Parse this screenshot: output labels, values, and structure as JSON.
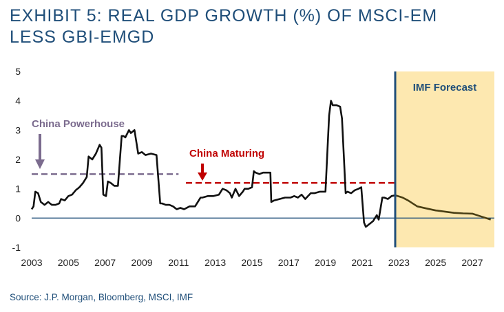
{
  "title": {
    "line1": "EXHIBIT 5: REAL GDP GROWTH (%) OF MSCI-EM",
    "line2": "LESS GBI-EMGD"
  },
  "source": "Source: J.P. Morgan, Bloomberg, MSCI, IMF",
  "colors": {
    "actual": "#111111",
    "forecast": "#4a3f14",
    "china_powerhouse": "#7b6b8e",
    "china_maturing": "#c00000",
    "forecast_shade": "#fde8b0",
    "divider": "#1f4e79"
  },
  "chart_data": {
    "type": "line",
    "title": "EXHIBIT 5: REAL GDP GROWTH (%) OF MSCI-EM LESS GBI-EMGD",
    "xlabel": "",
    "ylabel": "",
    "xlim": [
      2003,
      2028.2
    ],
    "ylim": [
      -1,
      5
    ],
    "x_ticks": [
      "2003",
      "2005",
      "2007",
      "2009",
      "2011",
      "2013",
      "2015",
      "2017",
      "2019",
      "2021",
      "2023",
      "2025",
      "2027"
    ],
    "y_ticks": [
      "5",
      "4",
      "3",
      "2",
      "1",
      "0",
      "-1"
    ],
    "grid": false,
    "series": [
      {
        "id": "actual",
        "x": [
          2003.0,
          2003.1,
          2003.2,
          2003.35,
          2003.5,
          2003.7,
          2003.9,
          2004.1,
          2004.3,
          2004.5,
          2004.6,
          2004.8,
          2005.0,
          2005.2,
          2005.4,
          2005.6,
          2005.8,
          2006.0,
          2006.1,
          2006.3,
          2006.5,
          2006.7,
          2006.8,
          2006.9,
          2007.05,
          2007.15,
          2007.3,
          2007.5,
          2007.7,
          2007.9,
          2008.0,
          2008.1,
          2008.3,
          2008.4,
          2008.6,
          2008.8,
          2009.0,
          2009.1,
          2009.2,
          2009.5,
          2009.8,
          2010.0,
          2010.1,
          2010.3,
          2010.5,
          2010.7,
          2010.9,
          2011.1,
          2011.3,
          2011.6,
          2011.9,
          2012.2,
          2012.3,
          2012.6,
          2012.9,
          2013.2,
          2013.4,
          2013.6,
          2013.8,
          2013.9,
          2014.1,
          2014.3,
          2014.5,
          2014.6,
          2014.8,
          2015.0,
          2015.1,
          2015.2,
          2015.4,
          2015.6,
          2015.8,
          2016.0,
          2016.05,
          2016.2,
          2016.5,
          2016.8,
          2017.1,
          2017.3,
          2017.5,
          2017.7,
          2017.9,
          2018.2,
          2018.4,
          2018.7,
          2019.0,
          2019.2,
          2019.3,
          2019.4,
          2019.6,
          2019.8,
          2019.9,
          2020.1,
          2020.2,
          2020.4,
          2020.6,
          2020.8,
          2020.95,
          2021.1,
          2021.2,
          2021.4,
          2021.6,
          2021.8,
          2021.9,
          2022.1,
          2022.2,
          2022.4,
          2022.6,
          2022.8
        ],
        "y": [
          0.3,
          0.4,
          0.9,
          0.85,
          0.55,
          0.45,
          0.55,
          0.45,
          0.45,
          0.5,
          0.65,
          0.6,
          0.75,
          0.8,
          0.95,
          1.05,
          1.2,
          1.4,
          2.1,
          2.0,
          2.2,
          2.5,
          2.4,
          0.8,
          0.75,
          1.25,
          1.2,
          1.1,
          1.1,
          2.8,
          2.8,
          2.75,
          3.0,
          2.9,
          3.0,
          2.2,
          2.25,
          2.2,
          2.15,
          2.2,
          2.15,
          0.5,
          0.5,
          0.45,
          0.45,
          0.4,
          0.3,
          0.35,
          0.3,
          0.4,
          0.4,
          0.7,
          0.7,
          0.75,
          0.75,
          0.8,
          1.0,
          0.95,
          0.85,
          0.7,
          1.0,
          0.75,
          0.9,
          1.0,
          1.0,
          1.05,
          1.6,
          1.55,
          1.5,
          1.55,
          1.55,
          1.55,
          0.55,
          0.6,
          0.65,
          0.7,
          0.7,
          0.75,
          0.7,
          0.8,
          0.65,
          0.85,
          0.85,
          0.9,
          0.9,
          3.5,
          4.0,
          3.85,
          3.85,
          3.8,
          3.4,
          0.85,
          0.9,
          0.85,
          0.95,
          1.0,
          1.05,
          -0.15,
          -0.3,
          -0.2,
          -0.1,
          0.1,
          -0.05,
          0.7,
          0.7,
          0.65,
          0.75,
          0.78
        ]
      },
      {
        "id": "forecast",
        "x": [
          2022.8,
          2023.2,
          2023.5,
          2024.0,
          2024.5,
          2025.0,
          2025.5,
          2026.0,
          2026.5,
          2027.0,
          2027.5,
          2028.0
        ],
        "y": [
          0.78,
          0.7,
          0.6,
          0.4,
          0.33,
          0.26,
          0.22,
          0.18,
          0.16,
          0.15,
          0.05,
          -0.05
        ]
      }
    ],
    "reference_lines": [
      {
        "id": "china_powerhouse",
        "label": "China Powerhouse",
        "y": 1.5,
        "x_range": [
          2003,
          2011
        ]
      },
      {
        "id": "china_maturing",
        "label": "China Maturing",
        "y": 1.2,
        "x_range": [
          2011.4,
          2022.8
        ]
      }
    ],
    "forecast_region": {
      "label": "IMF Forecast",
      "x_start": 2022.8,
      "x_end": 2028.2
    }
  }
}
